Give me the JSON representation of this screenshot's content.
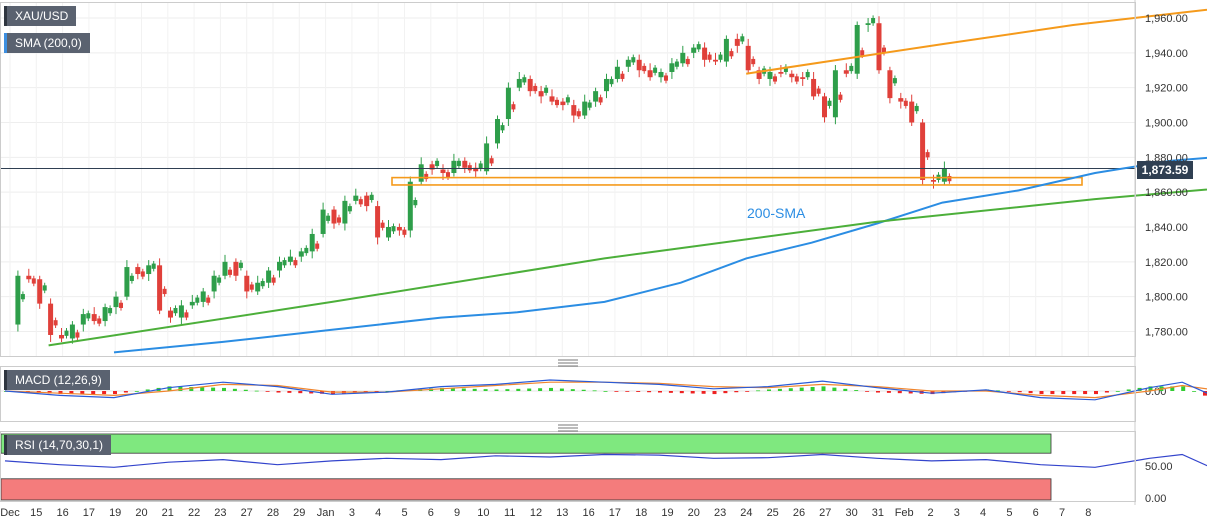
{
  "symbol": "XAU/USD",
  "indicators": {
    "sma": "SMA (200,0)",
    "macd": "MACD (12,26,9)",
    "rsi": "RSI (14,70,30,1)"
  },
  "current_price": "1,873.59",
  "sma_annotation": "200-SMA",
  "colors": {
    "bull_candle": "#2e9e4a",
    "bear_candle": "#e0403a",
    "sma_line": "#2b8de3",
    "resistance_line": "#f59a1b",
    "support_line": "#4caf3a",
    "support_zone": "#f59a1b",
    "macd_line": "#2a5bd7",
    "signal_line": "#f0852d",
    "hist_pos": "#33cc33",
    "hist_neg": "#ee2222",
    "rsi_line": "#3344cc",
    "overbought_zone": "#7fe87f",
    "oversold_zone": "#f47c7c"
  },
  "chart_data": [
    {
      "type": "candlestick",
      "title": "XAU/USD",
      "ylim": [
        1763,
        1967
      ],
      "y_ticks": [
        "1,960.00",
        "1,940.00",
        "1,920.00",
        "1,900.00",
        "1,880.00",
        "1,860.00",
        "1,840.00",
        "1,820.00",
        "1,800.00",
        "1,780.00"
      ],
      "x_ticks": [
        "Dec",
        "15",
        "16",
        "17",
        "19",
        "20",
        "21",
        "22",
        "23",
        "27",
        "28",
        "29",
        "Jan",
        "3",
        "4",
        "5",
        "6",
        "9",
        "10",
        "11",
        "12",
        "13",
        "16",
        "17",
        "18",
        "19",
        "20",
        "23",
        "24",
        "25",
        "26",
        "27",
        "30",
        "31",
        "Feb",
        "2",
        "3",
        "4",
        "5",
        "6",
        "7",
        "8"
      ],
      "close_path": [
        [
          0,
          1784
        ],
        [
          1,
          1812
        ],
        [
          2,
          1810
        ],
        [
          3,
          1796
        ],
        [
          4,
          1778
        ],
        [
          5,
          1776
        ],
        [
          6,
          1784
        ],
        [
          7,
          1790
        ],
        [
          8,
          1786
        ],
        [
          9,
          1794
        ],
        [
          10,
          1800
        ],
        [
          11,
          1817
        ],
        [
          12,
          1813
        ],
        [
          13,
          1818
        ],
        [
          14,
          1792
        ],
        [
          15,
          1788
        ],
        [
          16,
          1795
        ],
        [
          17,
          1797
        ],
        [
          18,
          1803
        ],
        [
          19,
          1812
        ],
        [
          20,
          1820
        ],
        [
          21,
          1812
        ],
        [
          22,
          1803
        ],
        [
          23,
          1808
        ],
        [
          24,
          1815
        ],
        [
          25,
          1820
        ],
        [
          26,
          1823
        ],
        [
          27,
          1826
        ],
        [
          28,
          1836
        ],
        [
          29,
          1850
        ],
        [
          30,
          1842
        ],
        [
          31,
          1855
        ],
        [
          32,
          1858
        ],
        [
          33,
          1852
        ],
        [
          34,
          1834
        ],
        [
          35,
          1840
        ],
        [
          36,
          1838
        ],
        [
          37,
          1866
        ],
        [
          38,
          1876
        ],
        [
          39,
          1873
        ],
        [
          40,
          1871
        ],
        [
          41,
          1878
        ],
        [
          42,
          1874
        ],
        [
          43,
          1872
        ],
        [
          44,
          1888
        ],
        [
          45,
          1902
        ],
        [
          46,
          1920
        ],
        [
          47,
          1925
        ],
        [
          48,
          1918
        ],
        [
          49,
          1915
        ],
        [
          50,
          1912
        ],
        [
          51,
          1910
        ],
        [
          52,
          1904
        ],
        [
          53,
          1912
        ],
        [
          54,
          1918
        ],
        [
          55,
          1925
        ],
        [
          56,
          1932
        ],
        [
          57,
          1936
        ],
        [
          58,
          1930
        ],
        [
          59,
          1926
        ],
        [
          60,
          1929
        ],
        [
          61,
          1934
        ],
        [
          62,
          1940
        ],
        [
          63,
          1943
        ],
        [
          64,
          1936
        ],
        [
          65,
          1935
        ],
        [
          66,
          1948
        ],
        [
          67,
          1944
        ],
        [
          68,
          1930
        ],
        [
          69,
          1925
        ],
        [
          70,
          1929
        ],
        [
          71,
          1928
        ],
        [
          72,
          1926
        ],
        [
          73,
          1925
        ],
        [
          74,
          1915
        ],
        [
          75,
          1903
        ],
        [
          76,
          1930
        ],
        [
          77,
          1928
        ],
        [
          78,
          1956
        ],
        [
          79,
          1957
        ],
        [
          80,
          1930
        ],
        [
          81,
          1914
        ],
        [
          82,
          1912
        ],
        [
          83,
          1900
        ],
        [
          84,
          1867
        ],
        [
          85,
          1866
        ],
        [
          86,
          1873.59
        ]
      ],
      "series": [
        {
          "name": "SMA (200,0)",
          "points": [
            [
              10,
              1768
            ],
            [
              20,
              1774
            ],
            [
              30,
              1781
            ],
            [
              40,
              1788
            ],
            [
              47,
              1791
            ],
            [
              55,
              1797
            ],
            [
              62,
              1808
            ],
            [
              68,
              1822
            ],
            [
              74,
              1831
            ],
            [
              80,
              1842
            ],
            [
              86,
              1854
            ],
            [
              93,
              1861
            ],
            [
              100,
              1871
            ],
            [
              107,
              1878
            ],
            [
              111,
              1880
            ]
          ]
        },
        {
          "name": "resistance",
          "points": [
            [
              68,
              1928
            ],
            [
              86,
              1945
            ],
            [
              98,
              1956
            ],
            [
              112,
              1966
            ]
          ]
        },
        {
          "name": "support",
          "points": [
            [
              4,
              1772
            ],
            [
              30,
              1797
            ],
            [
              55,
              1822
            ],
            [
              80,
              1843
            ],
            [
              100,
              1856
            ],
            [
              113,
              1863
            ]
          ]
        }
      ],
      "zone": [
        1865,
        1867.5
      ],
      "grid": true
    },
    {
      "type": "macd",
      "title": "MACD (12,26,9)",
      "y_ticks": [
        "0.00"
      ],
      "series": [
        {
          "name": "macd",
          "points": [
            [
              0,
              0
            ],
            [
              5,
              -4
            ],
            [
              10,
              -6
            ],
            [
              15,
              3
            ],
            [
              20,
              8
            ],
            [
              25,
              4
            ],
            [
              30,
              -3
            ],
            [
              35,
              -1
            ],
            [
              40,
              4
            ],
            [
              45,
              6
            ],
            [
              50,
              10
            ],
            [
              55,
              8
            ],
            [
              60,
              6
            ],
            [
              65,
              2
            ],
            [
              70,
              4
            ],
            [
              75,
              9
            ],
            [
              80,
              3
            ],
            [
              85,
              -2
            ],
            [
              90,
              1
            ],
            [
              95,
              -6
            ],
            [
              100,
              -8
            ],
            [
              105,
              3
            ],
            [
              108,
              8
            ],
            [
              111,
              -5
            ],
            [
              114,
              -18
            ],
            [
              116,
              -22
            ]
          ]
        },
        {
          "name": "signal",
          "points": [
            [
              0,
              0
            ],
            [
              5,
              -2
            ],
            [
              10,
              -4
            ],
            [
              15,
              0
            ],
            [
              20,
              6
            ],
            [
              25,
              5
            ],
            [
              30,
              -1
            ],
            [
              35,
              -1
            ],
            [
              40,
              2
            ],
            [
              45,
              5
            ],
            [
              50,
              8
            ],
            [
              55,
              8
            ],
            [
              60,
              7
            ],
            [
              65,
              4
            ],
            [
              70,
              3
            ],
            [
              75,
              6
            ],
            [
              80,
              4
            ],
            [
              85,
              0
            ],
            [
              90,
              0
            ],
            [
              95,
              -4
            ],
            [
              100,
              -6
            ],
            [
              105,
              0
            ],
            [
              108,
              5
            ],
            [
              111,
              1
            ],
            [
              114,
              -8
            ],
            [
              116,
              -14
            ]
          ]
        }
      ]
    },
    {
      "type": "rsi",
      "title": "RSI (14,70,30,1)",
      "y_ticks": [
        "50.00",
        "0.00"
      ],
      "overbought": 70,
      "oversold": 30,
      "values": [
        [
          0,
          58
        ],
        [
          5,
          52
        ],
        [
          10,
          48
        ],
        [
          15,
          56
        ],
        [
          20,
          60
        ],
        [
          25,
          52
        ],
        [
          30,
          58
        ],
        [
          35,
          62
        ],
        [
          40,
          60
        ],
        [
          45,
          66
        ],
        [
          50,
          64
        ],
        [
          55,
          68
        ],
        [
          60,
          67
        ],
        [
          65,
          62
        ],
        [
          70,
          63
        ],
        [
          75,
          68
        ],
        [
          80,
          62
        ],
        [
          85,
          58
        ],
        [
          90,
          60
        ],
        [
          95,
          52
        ],
        [
          100,
          48
        ],
        [
          105,
          62
        ],
        [
          108,
          68
        ],
        [
          111,
          45
        ],
        [
          114,
          28
        ],
        [
          116,
          30
        ]
      ]
    }
  ]
}
